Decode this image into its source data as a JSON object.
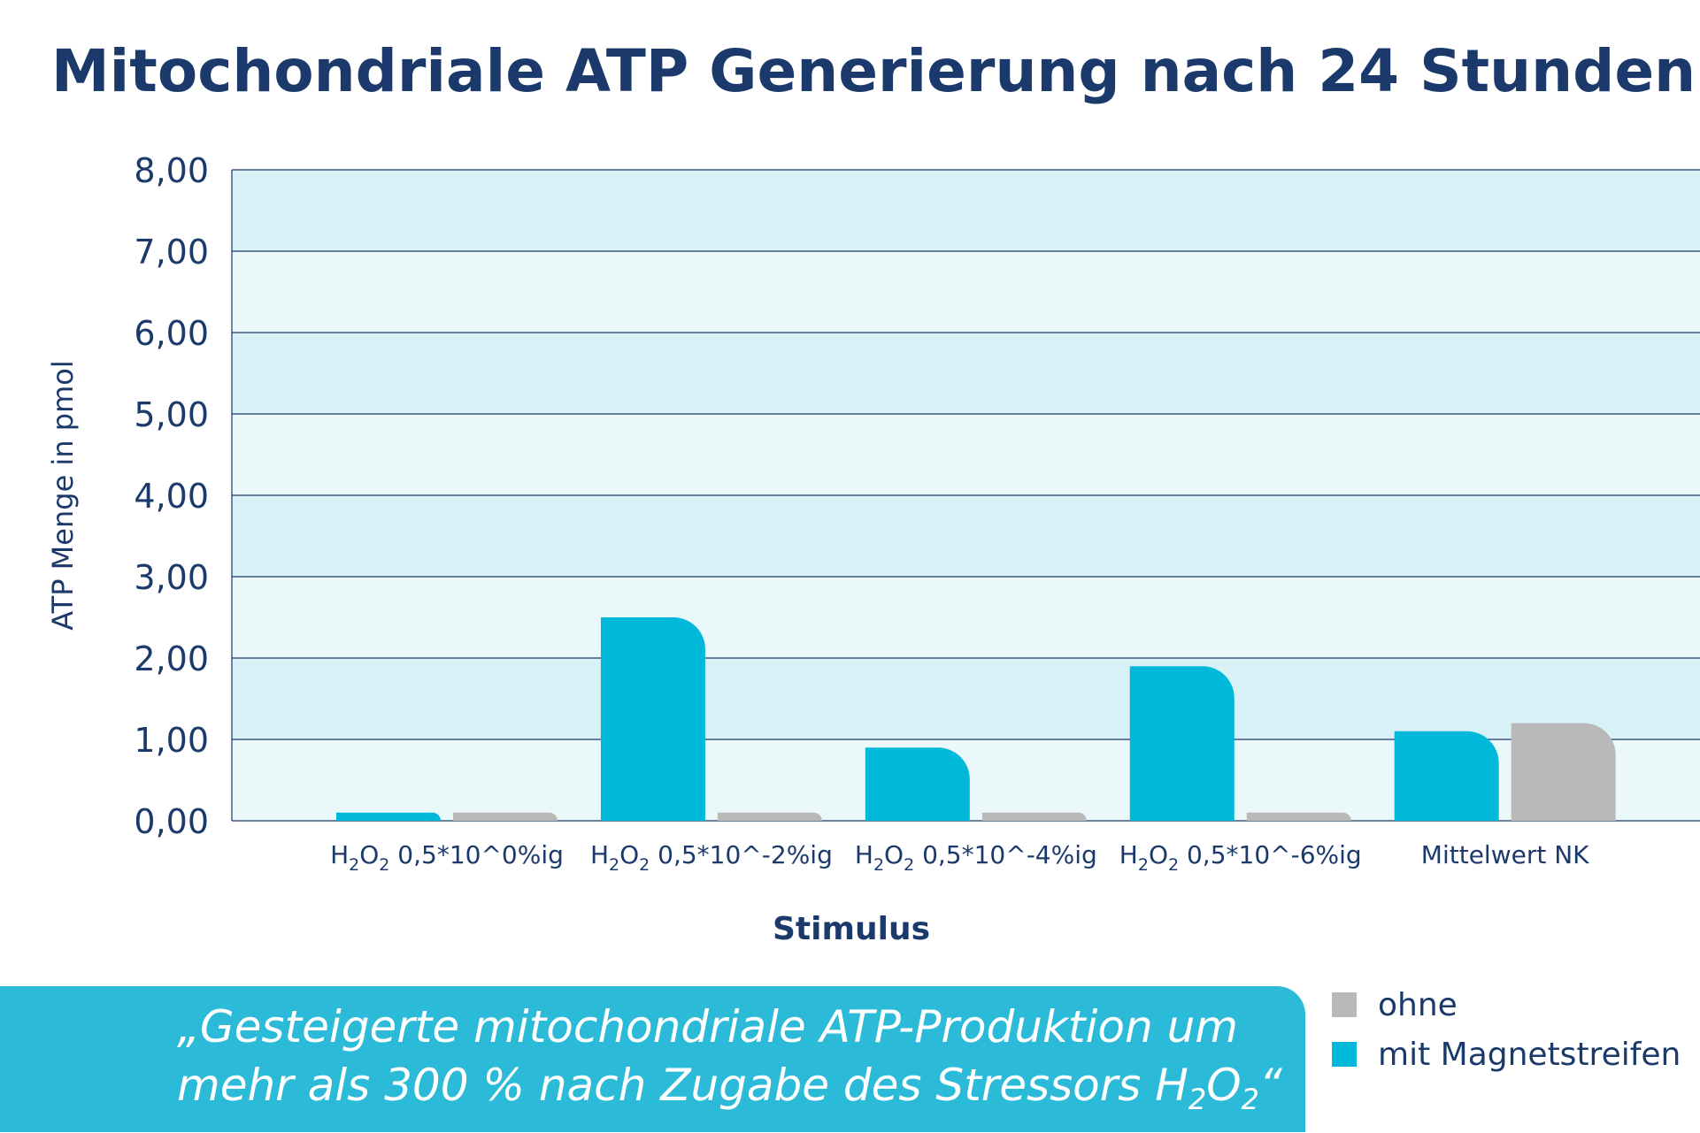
{
  "chart_data": {
    "type": "bar",
    "title": "Mitochondriale ATP Generierung nach 24 Stunden",
    "xlabel": "Stimulus",
    "ylabel": "ATP Menge in pmol",
    "ylim": [
      0,
      8
    ],
    "yticks": [
      "0,00",
      "1,00",
      "2,00",
      "3,00",
      "4,00",
      "5,00",
      "6,00",
      "7,00",
      "8,00"
    ],
    "categories": [
      {
        "prefix": "H",
        "sub1": "2",
        "mid": "O",
        "sub2": "2",
        "suffix": " 0,5*10^0%ig"
      },
      {
        "prefix": "H",
        "sub1": "2",
        "mid": "O",
        "sub2": "2",
        "suffix": " 0,5*10^-2%ig"
      },
      {
        "prefix": "H",
        "sub1": "2",
        "mid": "O",
        "sub2": "2",
        "suffix": " 0,5*10^-4%ig"
      },
      {
        "prefix": "H",
        "sub1": "2",
        "mid": "O",
        "sub2": "2",
        "suffix": " 0,5*10^-6%ig"
      },
      {
        "prefix": "Mittelwert NK",
        "sub1": "",
        "mid": "",
        "sub2": "",
        "suffix": ""
      }
    ],
    "series": [
      {
        "name": "mit Magnetstreifen",
        "color": "#00b8d8",
        "values": [
          0.1,
          2.5,
          0.9,
          1.9,
          1.1
        ]
      },
      {
        "name": "ohne",
        "color": "#b9b9b9",
        "values": [
          0.1,
          0.1,
          0.1,
          0.1,
          1.2
        ]
      }
    ],
    "grid": true,
    "legend": "bottom-right"
  },
  "legend": {
    "items": [
      {
        "label": "ohne",
        "color": "#b9b9b9"
      },
      {
        "label": "mit Magnetstreifen",
        "color": "#00b8d8"
      }
    ]
  },
  "banner": {
    "line1": "„Gesteigerte mitochondriale ATP-Produktion um",
    "line2_pre": "mehr als 300 % nach Zugabe des Stressors H",
    "line2_sub1": "2",
    "line2_mid": "O",
    "line2_sub2": "2",
    "line2_post": "“",
    "color": "#2bbbd8"
  },
  "colors": {
    "title": "#1b3a6b",
    "band_light": "#ebf8fa",
    "band_dark": "#d8f1f6"
  }
}
